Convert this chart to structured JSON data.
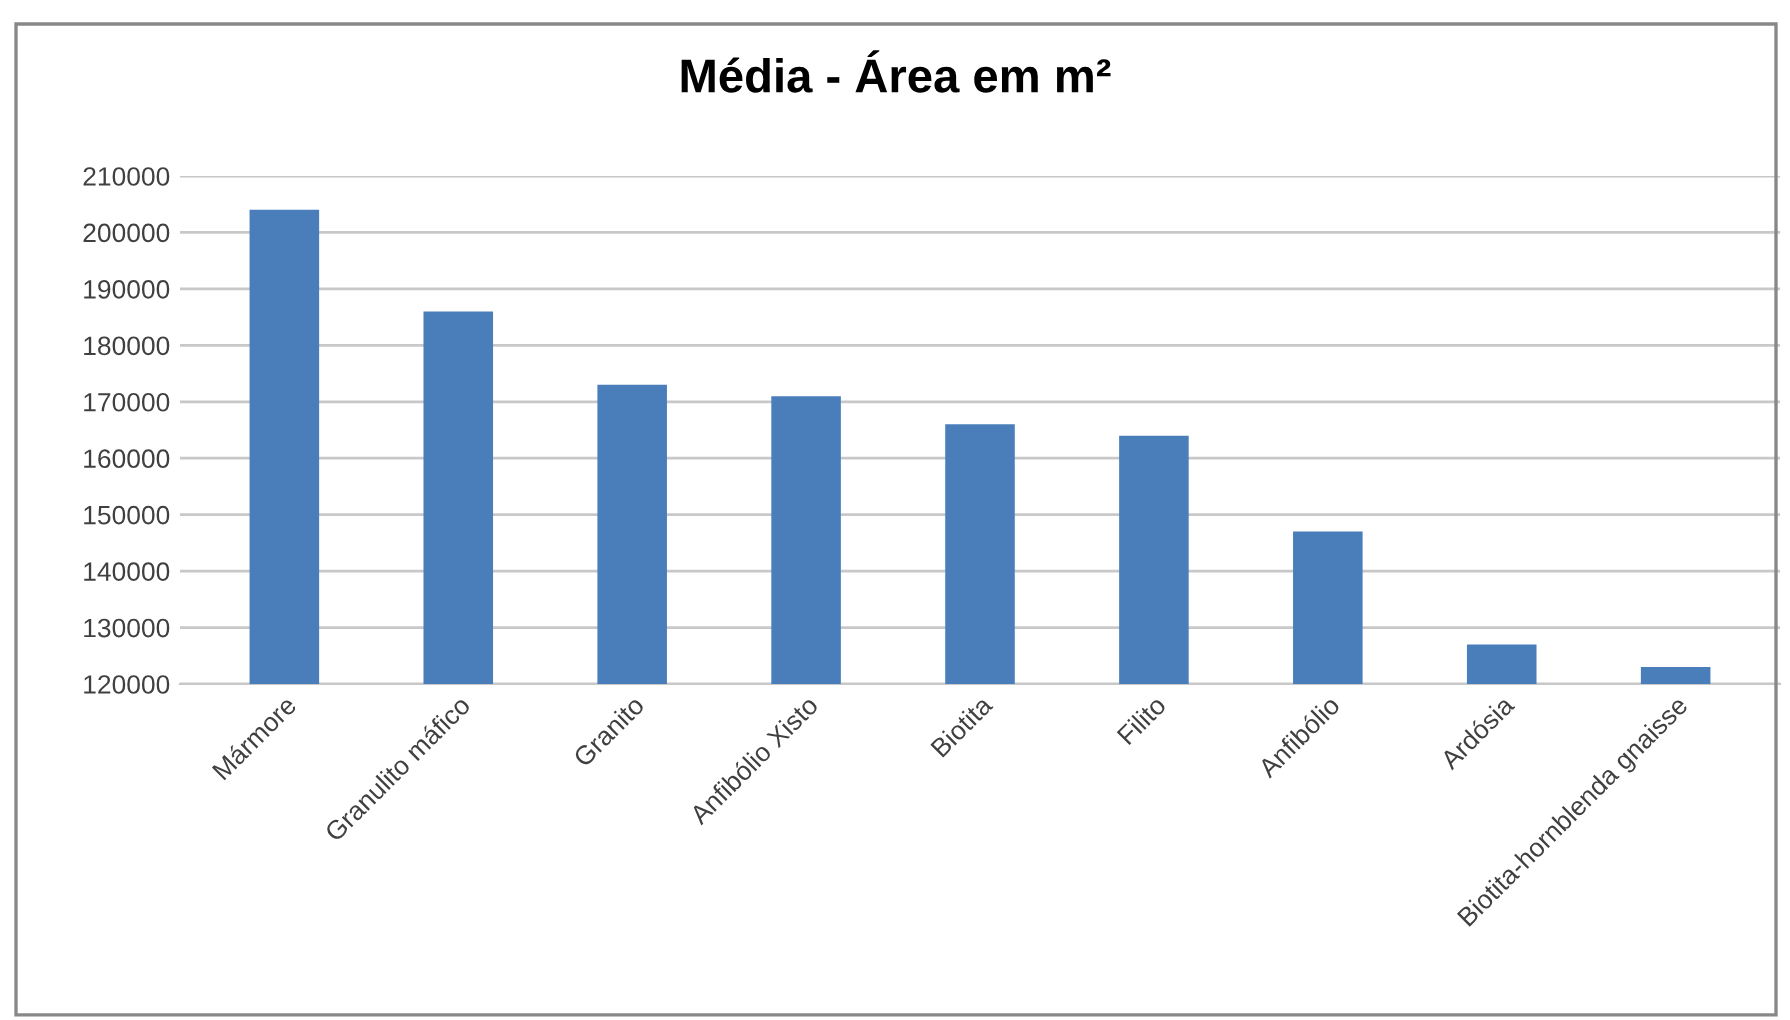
{
  "chart_data": {
    "type": "bar",
    "title": "Média - Área em m²",
    "categories": [
      "Mármore",
      "Granulito máfico",
      "Granito",
      "Anfibólio Xisto",
      "Biotita",
      "Filito",
      "Anfibólio",
      "Ardósia",
      "Biotita-hornblenda gnaisse"
    ],
    "values": [
      204000,
      186000,
      173000,
      171000,
      166000,
      164000,
      147000,
      127000,
      123000
    ],
    "color": "#4a7ebb",
    "ylim": [
      120000,
      210000
    ],
    "yticks": [
      120000,
      130000,
      140000,
      150000,
      160000,
      170000,
      180000,
      190000,
      200000,
      210000
    ],
    "grid": "y"
  }
}
